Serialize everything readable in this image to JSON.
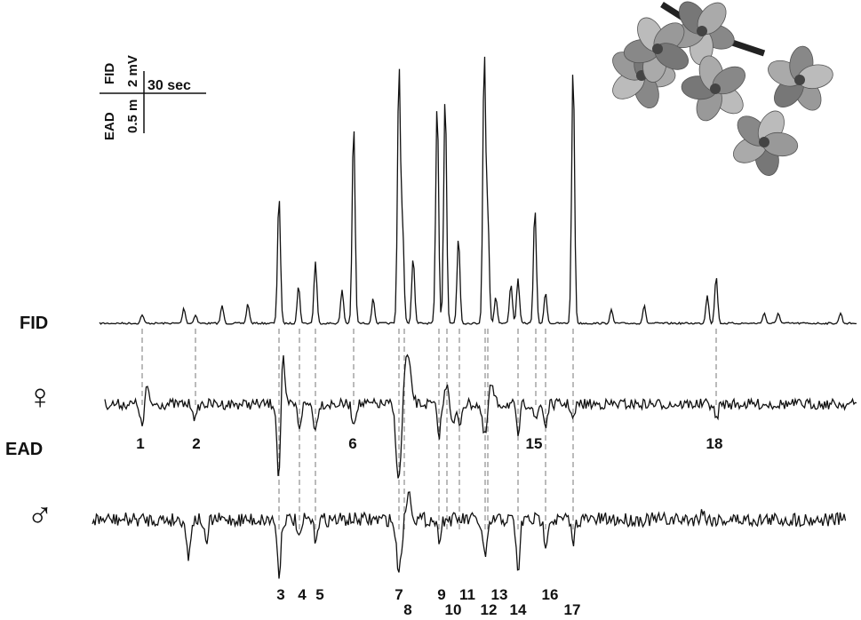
{
  "scale_bar": {
    "fid": "FID",
    "fid_unit": "2 mV",
    "time": "30 sec",
    "ead": "EAD",
    "ead_unit": "0.5 m"
  },
  "traces": {
    "fid": "FID",
    "female": "♀",
    "ead": "EAD",
    "male": "♂"
  },
  "peaks": [
    "1",
    "2",
    "3",
    "4",
    "5",
    "6",
    "7",
    "8",
    "9",
    "10",
    "11",
    "12",
    "13",
    "14",
    "15",
    "16",
    "17",
    "18"
  ]
}
